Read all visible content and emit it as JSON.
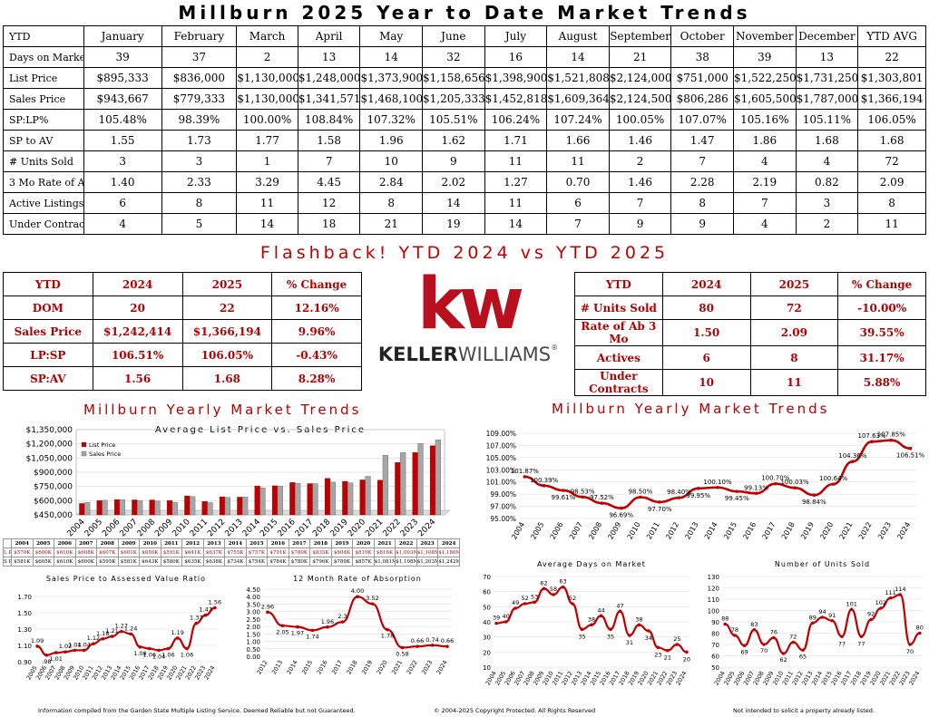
{
  "title": "Millburn 2025 Year to Date Market Trends",
  "main_table": {
    "header": [
      "YTD",
      "January",
      "February",
      "March",
      "April",
      "May",
      "June",
      "July",
      "August",
      "September",
      "October",
      "November",
      "December",
      "YTD AVG"
    ],
    "rows": [
      [
        "Days on Market",
        "39",
        "37",
        "2",
        "13",
        "14",
        "32",
        "16",
        "14",
        "21",
        "38",
        "39",
        "13",
        "22"
      ],
      [
        "List Price",
        "$895,333",
        "$836,000",
        "$1,130,000",
        "$1,248,000",
        "$1,373,900",
        "$1,158,656",
        "$1,398,900",
        "$1,521,808",
        "$2,124,000",
        "$751,000",
        "$1,522,250",
        "$1,731,250",
        "$1,303,801"
      ],
      [
        "Sales Price",
        "$943,667",
        "$779,333",
        "$1,130,000",
        "$1,341,571",
        "$1,468,100",
        "$1,205,333",
        "$1,452,818",
        "$1,609,364",
        "$2,124,500",
        "$806,286",
        "$1,605,500",
        "$1,787,000",
        "$1,366,194"
      ],
      [
        "SP:LP%",
        "105.48%",
        "98.39%",
        "100.00%",
        "108.84%",
        "107.32%",
        "105.51%",
        "106.24%",
        "107.24%",
        "100.05%",
        "107.07%",
        "105.16%",
        "105.11%",
        "106.05%"
      ],
      [
        "SP to AV",
        "1.55",
        "1.73",
        "1.77",
        "1.58",
        "1.96",
        "1.62",
        "1.71",
        "1.66",
        "1.46",
        "1.47",
        "1.86",
        "1.68",
        "1.68"
      ],
      [
        "# Units Sold",
        "3",
        "3",
        "1",
        "7",
        "10",
        "9",
        "11",
        "11",
        "2",
        "7",
        "4",
        "4",
        "72"
      ],
      [
        "3 Mo Rate of Ab",
        "1.40",
        "2.33",
        "3.29",
        "4.45",
        "2.84",
        "2.02",
        "1.27",
        "0.70",
        "1.46",
        "2.28",
        "2.19",
        "0.82",
        "2.09"
      ],
      [
        "Active Listings",
        "6",
        "8",
        "11",
        "12",
        "8",
        "14",
        "11",
        "6",
        "7",
        "8",
        "7",
        "3",
        "8"
      ],
      [
        "Under Contracts",
        "4",
        "5",
        "14",
        "18",
        "21",
        "19",
        "14",
        "7",
        "9",
        "9",
        "4",
        "2",
        "11"
      ]
    ]
  },
  "flashback_title": "Flashback!  YTD 2024 vs YTD 2025",
  "compare_left": {
    "header": [
      "YTD",
      "2024",
      "2025",
      "% Change"
    ],
    "rows": [
      [
        "DOM",
        "20",
        "22",
        "12.16%"
      ],
      [
        "Sales Price",
        "$1,242,414",
        "$1,366,194",
        "9.96%"
      ],
      [
        "LP:SP",
        "106.51%",
        "106.05%",
        "-0.43%"
      ],
      [
        "SP:AV",
        "1.56",
        "1.68",
        "8.28%"
      ]
    ]
  },
  "compare_right": {
    "header": [
      "YTD",
      "2024",
      "2025",
      "% Change"
    ],
    "rows": [
      [
        "# Units Sold",
        "80",
        "72",
        "-10.00%"
      ],
      [
        "Rate of Ab 3 Mo",
        "1.50",
        "2.09",
        "39.55%"
      ],
      [
        "Actives",
        "6",
        "8",
        "31.17%"
      ],
      [
        "Under Contracts",
        "10",
        "11",
        "5.88%"
      ]
    ]
  },
  "logo": {
    "mark": "kw",
    "name_bold": "KELLER",
    "name_rest": "WILLIAMS",
    "reg": "®"
  },
  "section_left_title": "Millburn Yearly Market Trends",
  "section_right_title": "Millburn Yearly Market Trends",
  "colors": {
    "red": "#c00000",
    "gray": "#a6a6a6"
  },
  "lpsp_table": {
    "years": [
      "2004",
      "2005",
      "2006",
      "2007",
      "2008",
      "2009",
      "2010",
      "2011",
      "2012",
      "2013",
      "2014",
      "2015",
      "2016",
      "2017",
      "2018",
      "2019",
      "2020",
      "2021",
      "2022",
      "2023",
      "2024"
    ],
    "lp_row_label": "L P",
    "sp_row_label": "S P",
    "lp": [
      "$570K",
      "$600K",
      "$610K",
      "$608K",
      "$607K",
      "$601K",
      "$650K",
      "$591K",
      "$641K",
      "$637K",
      "$755K",
      "$757K",
      "$791K",
      "$780K",
      "$835K",
      "$804K",
      "$819K",
      "$816K",
      "$1,003M",
      "$1,108M",
      "$1,180M"
    ],
    "sp": [
      "$581K",
      "$605K",
      "$610K",
      "$600K",
      "$595K",
      "$581K",
      "$643K",
      "$580K",
      "$635K",
      "$638K",
      "$734K",
      "$754K",
      "$784K",
      "$780K",
      "$796K",
      "$789K",
      "$857K",
      "$1,081M",
      "$1,108M",
      "$1,203M",
      "$1,242M"
    ]
  },
  "chart_data": [
    {
      "type": "bar",
      "title": "Average List Price vs. Sales Price",
      "categories": [
        "2004",
        "2005",
        "2006",
        "2007",
        "2008",
        "2009",
        "2010",
        "2011",
        "2012",
        "2013",
        "2014",
        "2015",
        "2016",
        "2017",
        "2018",
        "2019",
        "2020",
        "2021",
        "2022",
        "2023",
        "2024"
      ],
      "series": [
        {
          "name": "List Price",
          "color": "#c00000",
          "values": [
            570000,
            600000,
            610000,
            608000,
            607000,
            601000,
            650000,
            591000,
            641000,
            637000,
            755000,
            757000,
            791000,
            780000,
            835000,
            804000,
            819000,
            816000,
            1003000,
            1108000,
            1180000
          ]
        },
        {
          "name": "Sales Price",
          "color": "#a6a6a6",
          "values": [
            581000,
            605000,
            610000,
            600000,
            595000,
            581000,
            643000,
            580000,
            635000,
            638000,
            734000,
            754000,
            784000,
            780000,
            796000,
            789000,
            857000,
            1081000,
            1108000,
            1203000,
            1242000
          ]
        }
      ],
      "ylim": [
        450000,
        1350000
      ],
      "yticks": [
        "$1,350,000",
        "$1,200,000",
        "$1,050,000",
        "$900,000",
        "$750,000",
        "$600,000",
        "$450,000"
      ],
      "legend": "top-left"
    },
    {
      "type": "line",
      "title": "",
      "categories": [
        "2004",
        "2005",
        "2006",
        "2007",
        "2008",
        "2009",
        "2010",
        "2011",
        "2012",
        "2013",
        "2014",
        "2015",
        "2016",
        "2017",
        "2018",
        "2019",
        "2020",
        "2021",
        "2022",
        "2023",
        "2024"
      ],
      "values": [
        101.87,
        100.39,
        99.61,
        98.53,
        97.52,
        96.69,
        98.5,
        97.7,
        98.4,
        99.95,
        100.1,
        99.45,
        99.13,
        100.7,
        100.03,
        98.84,
        100.64,
        104.36,
        107.63,
        107.85,
        106.51
      ],
      "labels": [
        "101.87%",
        "100.39%",
        "99.61%",
        "98.53%",
        "97.52%",
        "96.69%",
        "98.50%",
        "97.70%",
        "98.40%",
        "99.95%",
        "100.10%",
        "99.45%",
        "99.13%",
        "100.70%",
        "100.03%",
        "98.84%",
        "100.64%",
        "104.36%",
        "107.63%",
        "107.85%",
        "106.51%"
      ],
      "ylim": [
        95,
        109
      ],
      "yticks": [
        "109.00%",
        "107.00%",
        "105.00%",
        "103.00%",
        "101.00%",
        "99.00%",
        "97.00%",
        "95.00%"
      ]
    },
    {
      "type": "line",
      "title": "Sales Price to Assessed Value Ratio",
      "categories": [
        "2005",
        "2006",
        "2007",
        "2008",
        "2009",
        "2010",
        "2011",
        "2012",
        "2013",
        "2014",
        "2015",
        "2016",
        "2017",
        "2018",
        "2019",
        "2020",
        "2021",
        "2022",
        "2023",
        "2024"
      ],
      "values": [
        1.09,
        0.98,
        1.01,
        1.02,
        1.04,
        1.04,
        1.12,
        1.18,
        1.21,
        1.27,
        1.24,
        1.08,
        1.06,
        1.04,
        1.06,
        1.19,
        1.06,
        1.37,
        1.47,
        1.56
      ],
      "labels": [
        "1.09",
        ".98",
        "1.01",
        "1.02",
        "1.04",
        "1.04",
        "1.12",
        "1.18",
        "1.21",
        "1.27",
        "1.24",
        "1.08",
        "1.06",
        "1.04",
        "1.06",
        "1.19",
        "1.06",
        "1.37",
        "1.47",
        "1.56"
      ],
      "ylim": [
        0.9,
        1.7
      ],
      "yticks": [
        "1.70",
        "1.50",
        "1.30",
        "1.10",
        "0.90"
      ]
    },
    {
      "type": "line",
      "title": "12 Month Rate of Absorption",
      "categories": [
        "2012",
        "2013",
        "2014",
        "2015",
        "2016",
        "2017",
        "2018",
        "2019",
        "2020",
        "2021",
        "2022",
        "2023",
        "2024"
      ],
      "values": [
        2.96,
        2.05,
        1.97,
        1.74,
        1.96,
        2.3,
        4.0,
        3.52,
        1.78,
        0.58,
        0.66,
        0.74,
        0.66
      ],
      "labels": [
        "2.96",
        "2.05",
        "1.97",
        "1.74",
        "1.96",
        "2.3",
        "4.00",
        "3.52",
        "1.78",
        "0.58",
        "0.66",
        "0.74",
        "0.66"
      ],
      "ylim": [
        0,
        4.5
      ],
      "yticks": [
        "4.50",
        "4.00",
        "3.50",
        "3.00",
        "2.50",
        "2.00",
        "1.50",
        "1.00",
        "0.50",
        "0.00"
      ]
    },
    {
      "type": "line",
      "title": "Average Days on Market",
      "categories": [
        "2004",
        "2005",
        "2006",
        "2007",
        "2008",
        "2009",
        "2010",
        "2011",
        "2012",
        "2013",
        "2014",
        "2015",
        "2016",
        "2017",
        "2018",
        "2019",
        "2020",
        "2021",
        "2022",
        "2023",
        "2024"
      ],
      "values": [
        39,
        40,
        49,
        52,
        53,
        62,
        58,
        63,
        52,
        35,
        38,
        44,
        35,
        47,
        31,
        38,
        34,
        23,
        21,
        25,
        20
      ],
      "labels": [
        "39",
        "40",
        "49",
        "52",
        "53",
        "62",
        "58",
        "63",
        "52",
        "35",
        "38",
        "44",
        "35",
        "47",
        "31",
        "38",
        "34",
        "23",
        "21",
        "25",
        "20"
      ],
      "ylim": [
        10,
        70
      ],
      "yticks": [
        "70",
        "60",
        "50",
        "40",
        "30",
        "20",
        "10"
      ]
    },
    {
      "type": "line",
      "title": "Number of Units Sold",
      "categories": [
        "2004",
        "2005",
        "2006",
        "2007",
        "2008",
        "2009",
        "2010",
        "2011",
        "2012",
        "2013",
        "2014",
        "2015",
        "2016",
        "2017",
        "2018",
        "2019",
        "2020",
        "2021",
        "2022",
        "2023",
        "2024"
      ],
      "values": [
        88,
        78,
        69,
        83,
        70,
        76,
        62,
        72,
        65,
        89,
        94,
        91,
        77,
        101,
        77,
        92,
        102,
        111,
        114,
        70,
        80
      ],
      "labels": [
        "88",
        "78",
        "69",
        "83",
        "70",
        "76",
        "62",
        "72",
        "65",
        "89",
        "94",
        "91",
        "77",
        "101",
        "77",
        "92",
        "102",
        "111",
        "114",
        "70",
        "80"
      ],
      "ylim": [
        50,
        130
      ],
      "yticks": [
        "130",
        "120",
        "110",
        "100",
        "90",
        "80",
        "70",
        "60",
        "50"
      ]
    }
  ],
  "footer": {
    "left": "Information compiled from the Garden State Multiple Listing Service.  Deemed Reliable but not Guaranteed.",
    "center": "© 2004-2025 Copyright Protected.  All Rights Reserved",
    "right": "Not intended to solicit a property already listed."
  }
}
